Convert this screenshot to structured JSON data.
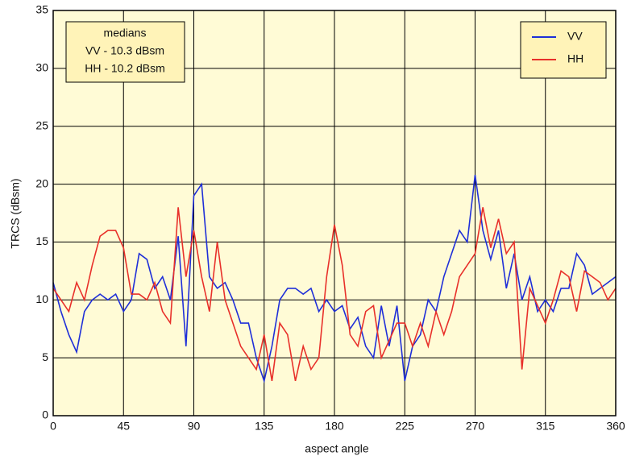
{
  "chart_data": {
    "type": "line",
    "xlabel": "aspect angle",
    "ylabel": "TRCS (dBsm)",
    "annotations": [
      "medians",
      "VV - 10.3 dBsm",
      "HH - 10.2 dBsm"
    ],
    "x": [
      0,
      5,
      10,
      15,
      20,
      25,
      30,
      35,
      40,
      45,
      50,
      55,
      60,
      65,
      70,
      75,
      80,
      85,
      90,
      95,
      100,
      105,
      110,
      115,
      120,
      125,
      130,
      135,
      140,
      145,
      150,
      155,
      160,
      165,
      170,
      175,
      180,
      185,
      190,
      195,
      200,
      205,
      210,
      215,
      220,
      225,
      230,
      235,
      240,
      245,
      250,
      255,
      260,
      265,
      270,
      275,
      280,
      285,
      290,
      295,
      300,
      305,
      310,
      315,
      320,
      325,
      330,
      335,
      340,
      345,
      350,
      355,
      360
    ],
    "series": [
      {
        "name": "VV",
        "color": "#1f2fd8",
        "values": [
          11.5,
          9,
          7,
          5.5,
          9,
          10,
          10.5,
          10,
          10.5,
          9,
          10,
          14,
          13.5,
          11,
          12,
          10,
          15.5,
          6,
          19,
          20,
          12,
          11,
          11.5,
          10,
          8,
          8,
          5,
          3,
          6,
          10,
          11,
          11,
          10.5,
          11,
          9,
          10,
          9,
          9.5,
          7.5,
          8.5,
          6,
          5,
          9.5,
          6,
          9.5,
          3,
          6,
          7,
          10,
          9,
          12,
          14,
          16,
          15,
          20.8,
          16,
          13.5,
          16,
          11,
          14,
          10,
          12,
          9,
          10,
          9,
          11,
          11,
          14,
          13,
          10.5,
          11,
          11.5,
          12
        ]
      },
      {
        "name": "HH",
        "color": "#e8302a",
        "values": [
          11,
          10,
          9,
          11.5,
          10,
          13,
          15.5,
          16,
          16,
          14.5,
          10.5,
          10.5,
          10,
          11.5,
          9,
          8,
          18,
          12,
          16,
          12,
          9,
          15,
          10,
          8,
          6,
          5,
          4,
          7,
          3,
          8,
          7,
          3,
          6,
          4,
          5,
          12,
          16.5,
          13,
          7,
          6,
          9,
          9.5,
          5,
          6.5,
          8,
          8,
          6,
          8,
          6,
          9,
          7,
          9,
          12,
          13,
          14,
          18,
          14.5,
          17,
          14,
          15,
          4,
          11,
          9.5,
          8,
          10,
          12.5,
          12,
          9,
          12.5,
          12,
          11.5,
          10,
          11
        ]
      }
    ],
    "xlim": [
      0,
      360
    ],
    "xticks": [
      0,
      45,
      90,
      135,
      180,
      225,
      270,
      315,
      360
    ],
    "ylim": [
      0,
      35
    ],
    "yticks": [
      0,
      5,
      10,
      15,
      20,
      25,
      30,
      35
    ],
    "grid": true,
    "legend": "upper right",
    "background": "#fffbd6"
  }
}
